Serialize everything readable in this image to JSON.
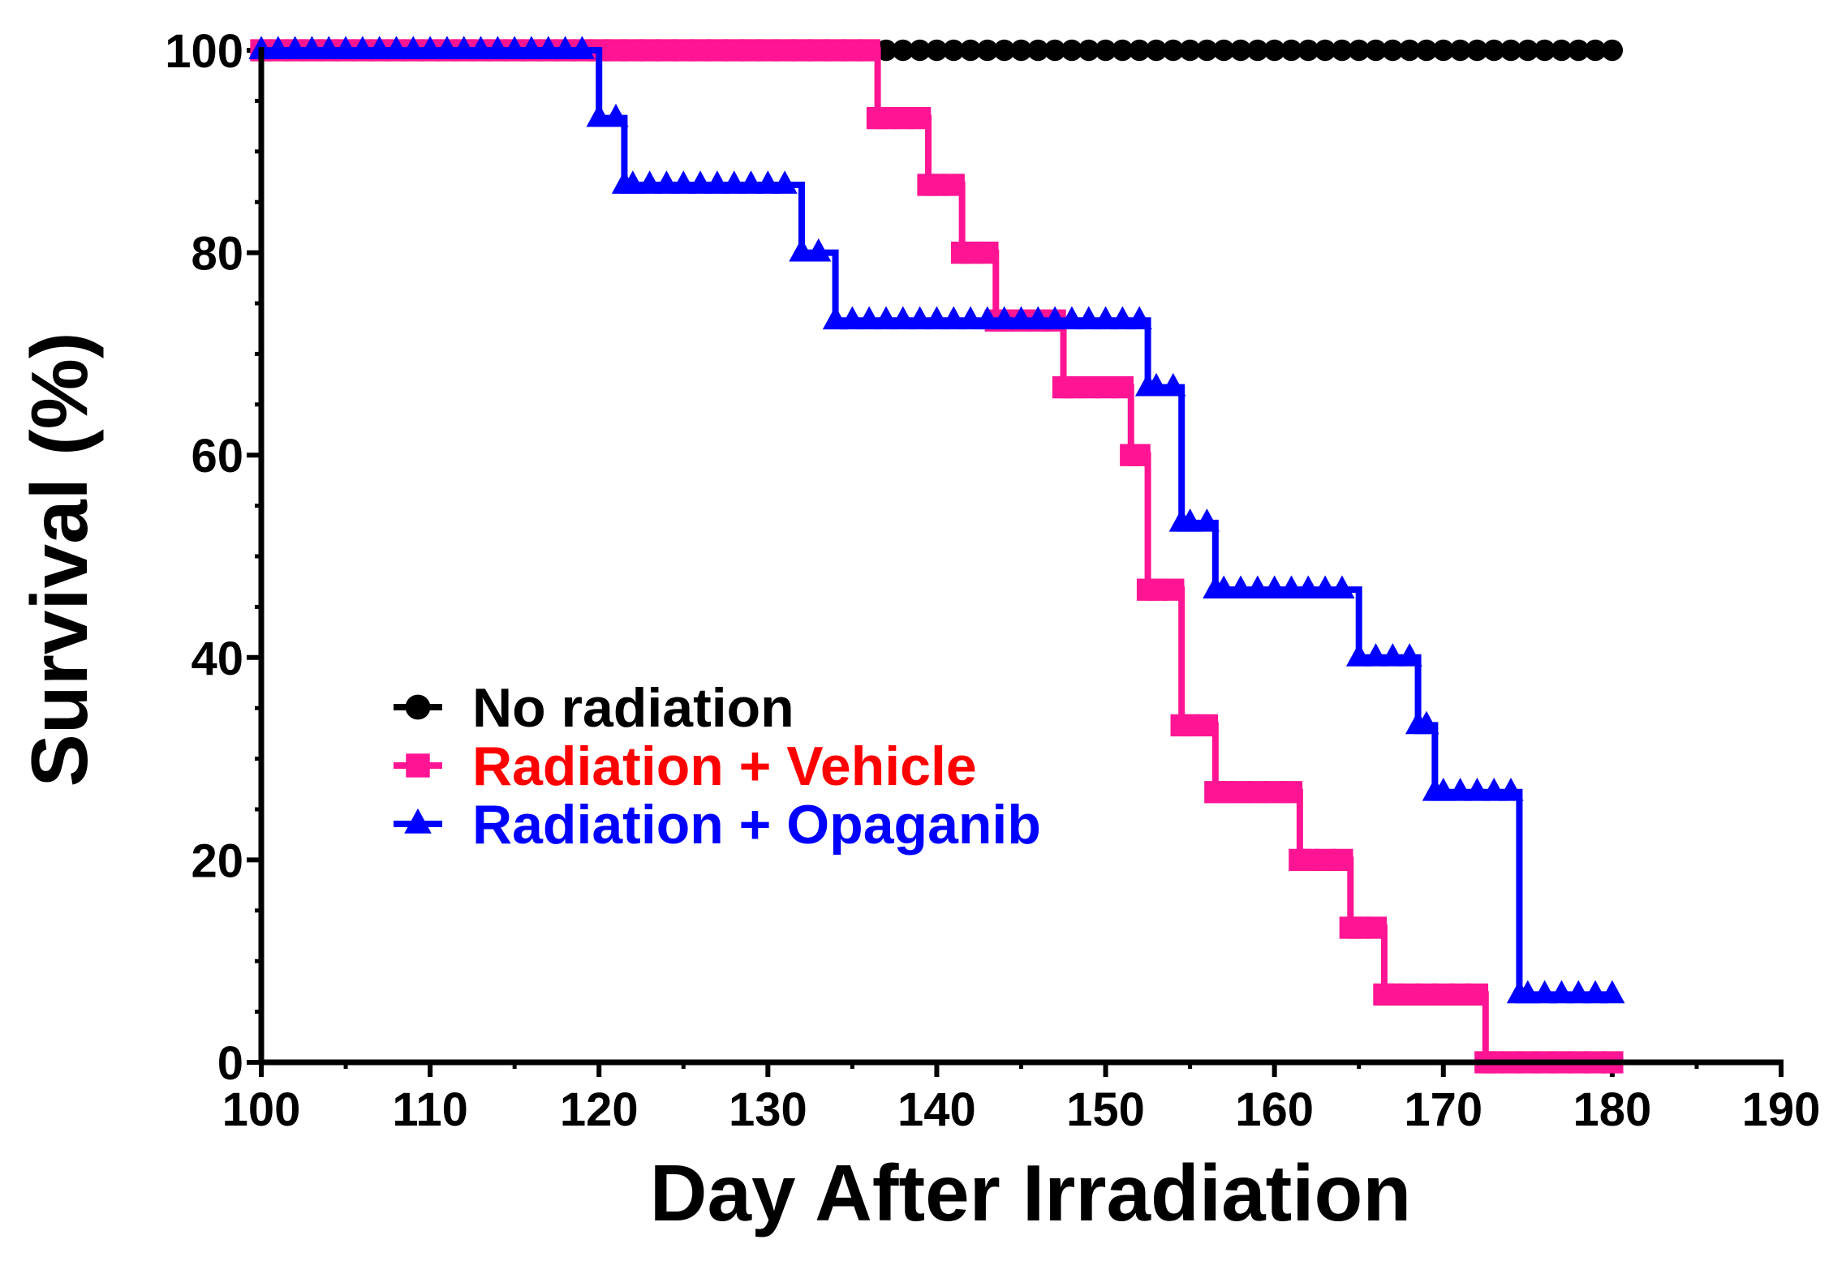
{
  "chart_data": {
    "type": "line",
    "step": true,
    "title": "",
    "xlabel": "Day After Irradiation",
    "ylabel": "Survival (%)",
    "xlim": [
      100,
      190
    ],
    "ylim": [
      0,
      100
    ],
    "x_ticks": [
      100,
      110,
      120,
      130,
      140,
      150,
      160,
      170,
      180,
      190
    ],
    "y_ticks": [
      0,
      20,
      40,
      60,
      80,
      100
    ],
    "x_tick_labels": [
      "100",
      "110",
      "120",
      "130",
      "140",
      "150",
      "160",
      "170",
      "180",
      "190"
    ],
    "y_tick_labels": [
      "0",
      "20",
      "40",
      "60",
      "80",
      "100"
    ],
    "x_minor_step": 5,
    "y_minor_step": 5,
    "legend_position": "center-left",
    "series": [
      {
        "name": "No radiation",
        "color": "#000000",
        "label_color": "#000000",
        "marker": "circle",
        "steps": [
          [
            100,
            100
          ],
          [
            180,
            100
          ]
        ]
      },
      {
        "name": "Radiation + Vehicle",
        "color": "#ff1493",
        "label_color": "#ff0000",
        "marker": "square",
        "steps": [
          [
            100,
            100
          ],
          [
            136.5,
            100
          ],
          [
            136.5,
            93.3
          ],
          [
            139.5,
            93.3
          ],
          [
            139.5,
            86.7
          ],
          [
            141.5,
            86.7
          ],
          [
            141.5,
            80
          ],
          [
            143.5,
            80
          ],
          [
            143.5,
            73.3
          ],
          [
            147.5,
            73.3
          ],
          [
            147.5,
            66.7
          ],
          [
            151.5,
            66.7
          ],
          [
            151.5,
            60
          ],
          [
            152.5,
            60
          ],
          [
            152.5,
            46.7
          ],
          [
            154.5,
            46.7
          ],
          [
            154.5,
            33.3
          ],
          [
            156.5,
            33.3
          ],
          [
            156.5,
            26.7
          ],
          [
            161.5,
            26.7
          ],
          [
            161.5,
            20
          ],
          [
            164.5,
            20
          ],
          [
            164.5,
            13.3
          ],
          [
            166.5,
            13.3
          ],
          [
            166.5,
            6.7
          ],
          [
            172.5,
            6.7
          ],
          [
            172.5,
            0
          ],
          [
            180,
            0
          ]
        ]
      },
      {
        "name": "Radiation + Opaganib",
        "color": "#0000ff",
        "label_color": "#0000ff",
        "marker": "triangle",
        "steps": [
          [
            100,
            100
          ],
          [
            120,
            100
          ],
          [
            120,
            93.3
          ],
          [
            121.5,
            93.3
          ],
          [
            121.5,
            86.7
          ],
          [
            132,
            86.7
          ],
          [
            132,
            80
          ],
          [
            134,
            80
          ],
          [
            134,
            73.3
          ],
          [
            152.5,
            73.3
          ],
          [
            152.5,
            66.7
          ],
          [
            154.5,
            66.7
          ],
          [
            154.5,
            53.3
          ],
          [
            156.5,
            53.3
          ],
          [
            156.5,
            46.7
          ],
          [
            165,
            46.7
          ],
          [
            165,
            40
          ],
          [
            168.5,
            40
          ],
          [
            168.5,
            33.3
          ],
          [
            169.5,
            33.3
          ],
          [
            169.5,
            26.7
          ],
          [
            174.5,
            26.7
          ],
          [
            174.5,
            6.7
          ],
          [
            180,
            6.7
          ]
        ]
      }
    ]
  }
}
